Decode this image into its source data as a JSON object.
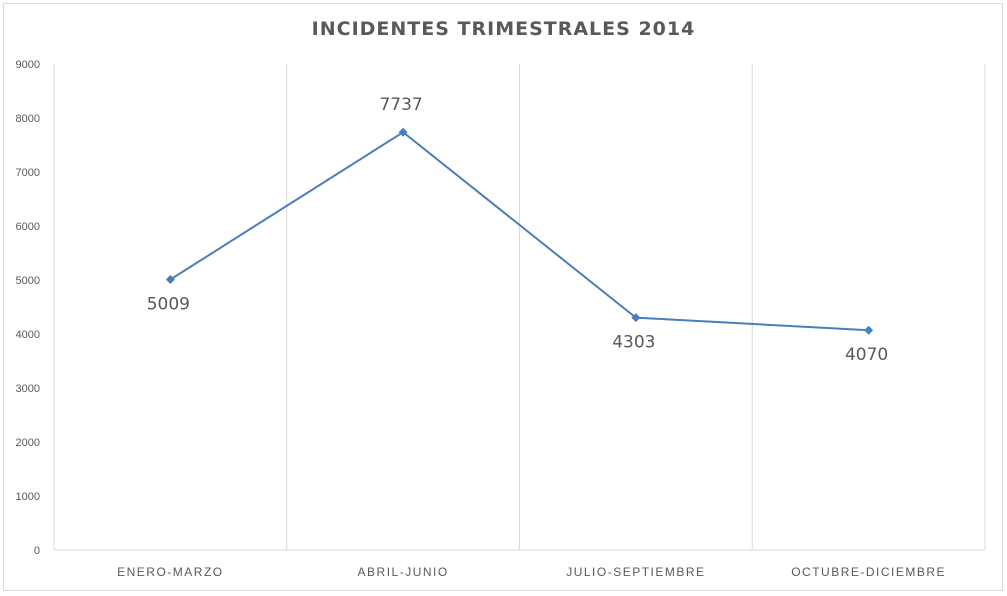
{
  "chart_data": {
    "type": "line",
    "title": "INCIDENTES TRIMESTRALES 2014",
    "categories": [
      "ENERO-MARZO",
      "ABRIL-JUNIO",
      "JULIO-SEPTIEMBRE",
      "OCTUBRE-DICIEMBRE"
    ],
    "values": [
      5009,
      7737,
      4303,
      4070
    ],
    "data_labels": [
      "5009",
      "7737",
      "4303",
      "4070"
    ],
    "ylim": [
      0,
      9000
    ],
    "yticks": [
      "0",
      "1000",
      "2000",
      "3000",
      "4000",
      "5000",
      "6000",
      "7000",
      "8000",
      "9000"
    ],
    "data_label_side": [
      "below",
      "above",
      "below",
      "below"
    ],
    "grid": "vertical",
    "legend": "none",
    "colors": {
      "line": "#4a7ebb",
      "grid": "#d9d9d9",
      "text": "#595959"
    }
  }
}
